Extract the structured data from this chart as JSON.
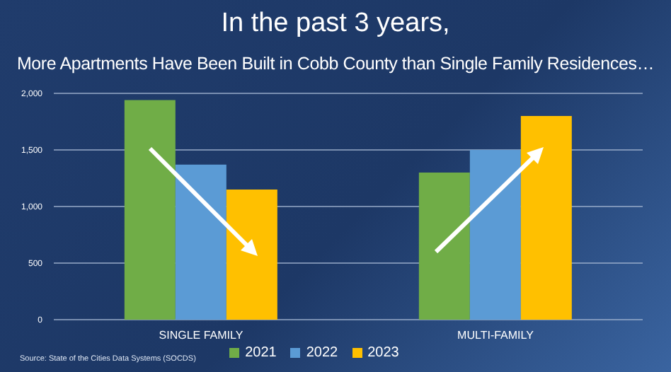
{
  "chart_data": {
    "type": "bar",
    "title": "In the past 3 years,",
    "subtitle": "More Apartments Have Been Built in Cobb County than Single Family Residences…",
    "categories": [
      "SINGLE FAMILY",
      "MULTI-FAMILY"
    ],
    "series": [
      {
        "name": "2021",
        "color": "#70ad47",
        "values": [
          1940,
          1300
        ]
      },
      {
        "name": "2022",
        "color": "#5b9bd5",
        "values": [
          1370,
          1500
        ]
      },
      {
        "name": "2023",
        "color": "#ffc000",
        "values": [
          1150,
          1800
        ]
      }
    ],
    "ylim": [
      0,
      2000
    ],
    "yticks": [
      {
        "value": 0,
        "label": "0"
      },
      {
        "value": 500,
        "label": "500"
      },
      {
        "value": 1000,
        "label": "1,000"
      },
      {
        "value": 1500,
        "label": "1,500"
      },
      {
        "value": 2000,
        "label": "2,000"
      }
    ],
    "grid": "y",
    "legend": "bottom",
    "annotations": [
      "Source: State of the Cities Data Systems (SOCDS)"
    ]
  }
}
